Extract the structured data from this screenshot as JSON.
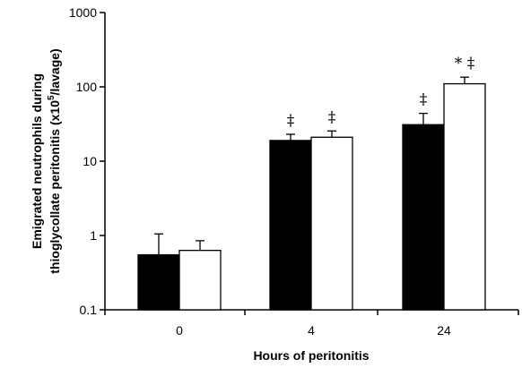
{
  "chart_data": {
    "type": "bar",
    "scale": "log",
    "ylim": [
      0.1,
      1000
    ],
    "yticks": [
      "0.1",
      "1",
      "10",
      "100",
      "1000"
    ],
    "xlabel": "Hours of peritonitis",
    "ylabel_line1": "Emigrated neutrophils during",
    "ylabel_line2_prefix": "thioglycollate peritonitis (x10",
    "ylabel_sup": "5",
    "ylabel_line2_suffix": "/lavage)",
    "categories": [
      "0",
      "4",
      "24"
    ],
    "series": [
      {
        "fill": "#000000",
        "values": [
          0.55,
          19,
          31
        ],
        "errors": [
          1.05,
          23,
          44
        ]
      },
      {
        "fill": "#ffffff",
        "values": [
          0.63,
          21,
          110
        ],
        "errors": [
          0.85,
          25.5,
          135
        ]
      }
    ],
    "annotations": [
      {
        "category": 1,
        "series": 0,
        "text": "‡"
      },
      {
        "category": 1,
        "series": 1,
        "text": "‡"
      },
      {
        "category": 2,
        "series": 0,
        "text": "‡"
      },
      {
        "category": 2,
        "series": 1,
        "text": "* ‡"
      }
    ]
  }
}
